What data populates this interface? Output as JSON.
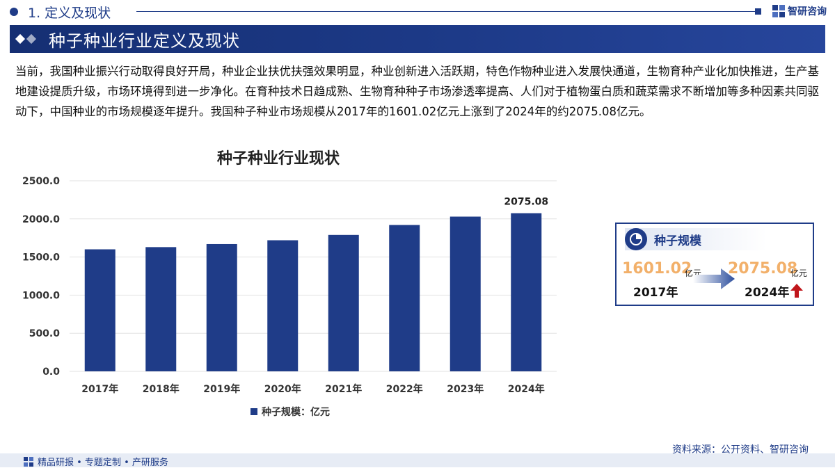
{
  "header": {
    "section_title": "1. 定义及现状",
    "brand": "智研咨询"
  },
  "banner": {
    "title": "种子种业行业定义及现状"
  },
  "intro": "当前，我国种业振兴行动取得良好开局，种业企业扶优扶强效果明显，种业创新进入活跃期，特色作物种业进入发展快通道，生物育种产业化加快推进，生产基地建设提质升级，市场环境得到进一步净化。在育种技术日趋成熟、生物育种种子市场渗透率提高、人们对于植物蛋白质和蔬菜需求不断增加等多种因素共同驱动下，中国种业的市场规模逐年提升。我国种子种业市场规模从2017年的1601.02亿元上涨到了2024年的约2075.08亿元。",
  "chart_data": {
    "type": "bar",
    "title": "种子种业行业现状",
    "categories": [
      "2017年",
      "2018年",
      "2019年",
      "2020年",
      "2021年",
      "2022年",
      "2023年",
      "2024年"
    ],
    "series": [
      {
        "name": "种子规模：亿元",
        "values": [
          1601.02,
          1630,
          1670,
          1720,
          1790,
          1920,
          2030,
          2075.08
        ]
      }
    ],
    "data_labels": {
      "2024年": "2075.08"
    },
    "yticks": [
      "0.0",
      "500.0",
      "1000.0",
      "1500.0",
      "2000.0",
      "2500.0"
    ],
    "ylim": [
      0,
      2500
    ],
    "xlabel": "",
    "ylabel": "",
    "grid": true,
    "legend": "bottom",
    "bar_color": "#1f3c88"
  },
  "card": {
    "title": "种子规模",
    "start_value": "1601.02",
    "start_unit": "亿元",
    "start_year": "2017年",
    "end_value": "2075.08",
    "end_unit": "亿元",
    "end_year": "2024年"
  },
  "footer": {
    "source": "资料来源：公开资料、智研咨询",
    "slogan": "精品研报 • 专题定制 • 产研服务"
  },
  "colors": {
    "primary": "#1f3c88",
    "accent_value": "#f2b06a",
    "up_arrow": "#c0161b"
  }
}
